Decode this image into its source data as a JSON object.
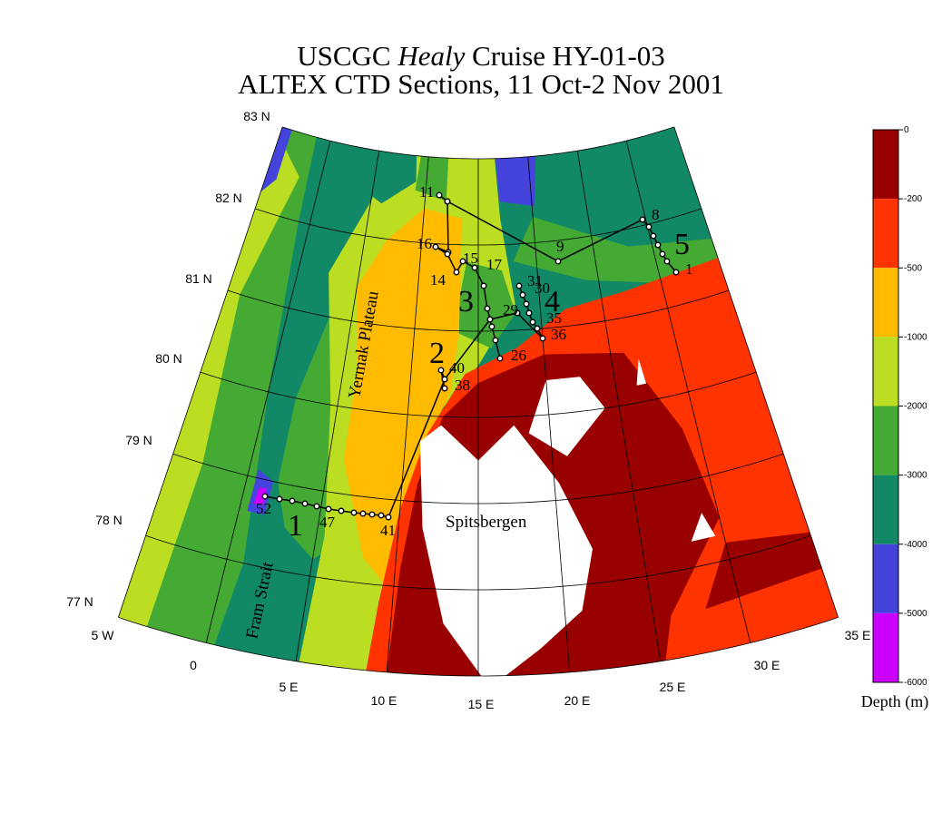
{
  "title": {
    "line1_prefix": "USCGC",
    "line1_italic": "Healy",
    "line1_suffix": "Cruise HY-01-03",
    "line2": "ALTEX CTD Sections, 11 Oct-2 Nov 2001"
  },
  "latitude_labels": [
    "83 N",
    "82 N",
    "81 N",
    "80 N",
    "79 N",
    "78 N",
    "77 N"
  ],
  "longitude_labels": [
    "5 W",
    "0",
    "5 E",
    "10 E",
    "15 E",
    "20 E",
    "25 E",
    "30 E",
    "35 E"
  ],
  "place_labels": [
    "Yermak Plateau",
    "Fram Strait",
    "Spitsbergen"
  ],
  "section_labels": [
    "1",
    "2",
    "3",
    "4",
    "5"
  ],
  "station_labels": [
    "11",
    "16",
    "15",
    "14",
    "17",
    "9",
    "8",
    "1",
    "31",
    "30",
    "29",
    "35",
    "36",
    "26",
    "40",
    "38",
    "52",
    "47",
    "41"
  ],
  "colorbar": {
    "title": "Depth (m)",
    "ticks": [
      0,
      -200,
      -500,
      -1000,
      -2000,
      -3000,
      -4000,
      -5000,
      -6000
    ],
    "colors": [
      "#990000",
      "#ff3300",
      "#ffbb00",
      "#bbdd22",
      "#44aa33",
      "#118866",
      "#4444dd",
      "#cc00ff"
    ]
  }
}
